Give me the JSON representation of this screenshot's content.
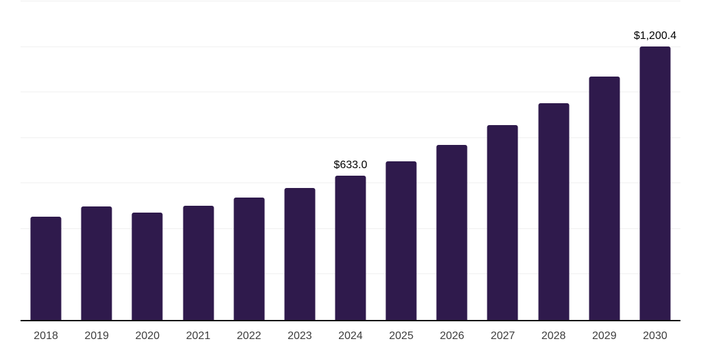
{
  "chart_data": {
    "type": "bar",
    "title": "",
    "xlabel": "",
    "ylabel": "",
    "categories": [
      "2018",
      "2019",
      "2020",
      "2021",
      "2022",
      "2023",
      "2024",
      "2025",
      "2026",
      "2027",
      "2028",
      "2029",
      "2030"
    ],
    "values": [
      454,
      499,
      472,
      502,
      537,
      579,
      633.0,
      696,
      770,
      855,
      953,
      1069,
      1200.4
    ],
    "data_labels": [
      "",
      "",
      "",
      "",
      "",
      "",
      "$633.0",
      "",
      "",
      "",
      "",
      "",
      "$1,200.4"
    ],
    "ylim": [
      0,
      1400
    ],
    "gridline_step": 200,
    "grid": true,
    "legend": "none",
    "y_tick_labels_visible": false,
    "colors": {
      "bar": "#2f1a4c",
      "axis": "#0d0d0d",
      "gridline": "#f0f0f0",
      "value_label": "#000000",
      "tick_label": "#3d3d3d",
      "background": "#ffffff"
    }
  }
}
